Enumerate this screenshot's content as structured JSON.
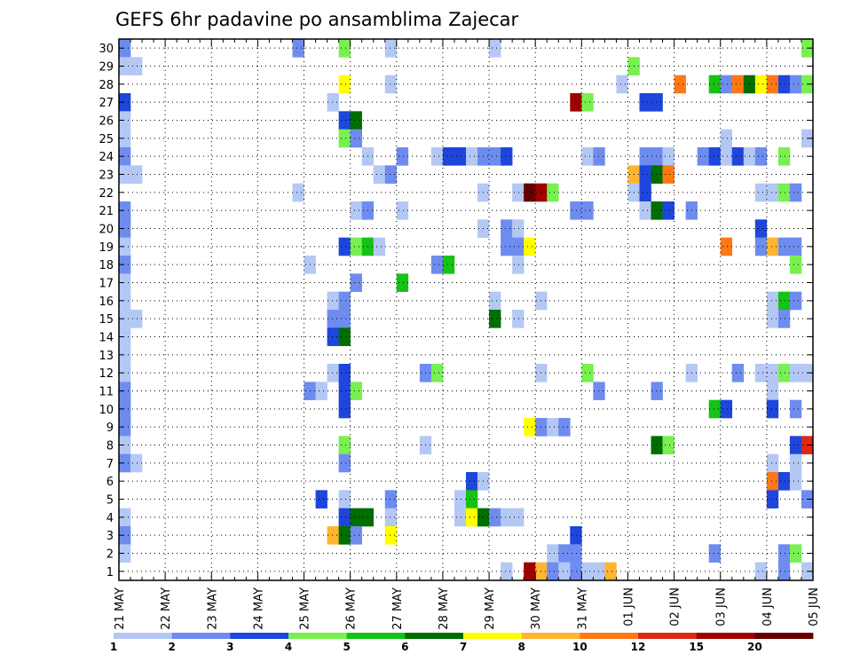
{
  "chart_data": {
    "type": "heatmap",
    "title": "GEFS 6hr padavine po ansamblima Zajecar",
    "x_tick_labels": [
      "21 MAY",
      "22 MAY",
      "23 MAY",
      "24 MAY",
      "25 MAY",
      "26 MAY",
      "27 MAY",
      "28 MAY",
      "29 MAY",
      "30 MAY",
      "31 MAY",
      "01 JUN",
      "02 JUN",
      "03 JUN",
      "04 JUN",
      "05 JUN"
    ],
    "y_tick_labels": [
      "1",
      "2",
      "3",
      "4",
      "5",
      "6",
      "7",
      "8",
      "9",
      "10",
      "11",
      "12",
      "13",
      "14",
      "15",
      "16",
      "17",
      "18",
      "19",
      "20",
      "21",
      "22",
      "23",
      "24",
      "25",
      "26",
      "27",
      "28",
      "29",
      "30"
    ],
    "x_step_hours": 6,
    "n_steps": 60,
    "grid": true,
    "legend": {
      "position": "bottom",
      "levels": [
        "1",
        "2",
        "3",
        "4",
        "5",
        "6",
        "7",
        "8",
        "10",
        "12",
        "15",
        "20"
      ],
      "colors": [
        "#b4c8f5",
        "#6e8cf0",
        "#1e46dc",
        "#78f050",
        "#14c314",
        "#006e00",
        "#ffff00",
        "#ffb432",
        "#ff7814",
        "#dc2814",
        "#a00000",
        "#640000"
      ]
    },
    "series": [
      {
        "y": 30,
        "cells": [
          [
            0,
            2
          ],
          [
            15,
            2
          ],
          [
            19,
            4
          ],
          [
            23,
            1
          ],
          [
            32,
            1
          ],
          [
            59,
            4
          ]
        ]
      },
      {
        "y": 29,
        "cells": [
          [
            0,
            1
          ],
          [
            1,
            1
          ],
          [
            44,
            4
          ]
        ]
      },
      {
        "y": 28,
        "cells": [
          [
            19,
            7
          ],
          [
            23,
            1
          ],
          [
            43,
            1
          ],
          [
            48,
            9
          ],
          [
            51,
            5
          ],
          [
            52,
            2
          ],
          [
            53,
            9
          ],
          [
            54,
            6
          ],
          [
            55,
            7
          ],
          [
            56,
            9
          ],
          [
            57,
            3
          ],
          [
            58,
            2
          ],
          [
            59,
            4
          ]
        ]
      },
      {
        "y": 27,
        "cells": [
          [
            0,
            3
          ],
          [
            18,
            1
          ],
          [
            39,
            11
          ],
          [
            40,
            4
          ],
          [
            45,
            3
          ],
          [
            46,
            3
          ]
        ]
      },
      {
        "y": 26,
        "cells": [
          [
            0,
            1
          ],
          [
            19,
            3
          ],
          [
            20,
            6
          ]
        ]
      },
      {
        "y": 25,
        "cells": [
          [
            0,
            1
          ],
          [
            19,
            4
          ],
          [
            20,
            2
          ],
          [
            52,
            1
          ],
          [
            59,
            1
          ]
        ]
      },
      {
        "y": 24,
        "cells": [
          [
            0,
            2
          ],
          [
            21,
            1
          ],
          [
            24,
            2
          ],
          [
            27,
            1
          ],
          [
            28,
            3
          ],
          [
            29,
            3
          ],
          [
            30,
            1
          ],
          [
            31,
            2
          ],
          [
            32,
            2
          ],
          [
            33,
            3
          ],
          [
            40,
            1
          ],
          [
            41,
            2
          ],
          [
            45,
            2
          ],
          [
            46,
            2
          ],
          [
            47,
            1
          ],
          [
            50,
            2
          ],
          [
            51,
            3
          ],
          [
            52,
            1
          ],
          [
            53,
            3
          ],
          [
            54,
            1
          ],
          [
            55,
            2
          ],
          [
            57,
            4
          ]
        ]
      },
      {
        "y": 23,
        "cells": [
          [
            0,
            1
          ],
          [
            1,
            1
          ],
          [
            22,
            1
          ],
          [
            23,
            2
          ],
          [
            44,
            8
          ],
          [
            45,
            3
          ],
          [
            46,
            6
          ],
          [
            47,
            9
          ]
        ]
      },
      {
        "y": 22,
        "cells": [
          [
            15,
            1
          ],
          [
            31,
            1
          ],
          [
            34,
            1
          ],
          [
            35,
            12
          ],
          [
            36,
            11
          ],
          [
            37,
            4
          ],
          [
            44,
            1
          ],
          [
            45,
            3
          ],
          [
            55,
            1
          ],
          [
            56,
            1
          ],
          [
            57,
            4
          ],
          [
            58,
            2
          ]
        ]
      },
      {
        "y": 21,
        "cells": [
          [
            0,
            2
          ],
          [
            20,
            1
          ],
          [
            21,
            2
          ],
          [
            24,
            1
          ],
          [
            39,
            2
          ],
          [
            40,
            2
          ],
          [
            45,
            1
          ],
          [
            46,
            6
          ],
          [
            47,
            3
          ],
          [
            49,
            2
          ]
        ]
      },
      {
        "y": 20,
        "cells": [
          [
            0,
            2
          ],
          [
            31,
            1
          ],
          [
            33,
            2
          ],
          [
            34,
            1
          ],
          [
            55,
            3
          ]
        ]
      },
      {
        "y": 19,
        "cells": [
          [
            0,
            1
          ],
          [
            19,
            3
          ],
          [
            20,
            4
          ],
          [
            21,
            5
          ],
          [
            22,
            1
          ],
          [
            33,
            2
          ],
          [
            34,
            2
          ],
          [
            35,
            7
          ],
          [
            52,
            9
          ],
          [
            55,
            2
          ],
          [
            56,
            8
          ],
          [
            57,
            2
          ],
          [
            58,
            2
          ]
        ]
      },
      {
        "y": 18,
        "cells": [
          [
            0,
            2
          ],
          [
            16,
            1
          ],
          [
            27,
            2
          ],
          [
            28,
            5
          ],
          [
            34,
            1
          ],
          [
            58,
            4
          ]
        ]
      },
      {
        "y": 17,
        "cells": [
          [
            0,
            1
          ],
          [
            20,
            2
          ],
          [
            24,
            5
          ]
        ]
      },
      {
        "y": 16,
        "cells": [
          [
            0,
            1
          ],
          [
            18,
            1
          ],
          [
            19,
            2
          ],
          [
            32,
            1
          ],
          [
            36,
            1
          ],
          [
            56,
            1
          ],
          [
            57,
            5
          ],
          [
            58,
            2
          ]
        ]
      },
      {
        "y": 15,
        "cells": [
          [
            0,
            1
          ],
          [
            1,
            1
          ],
          [
            18,
            2
          ],
          [
            19,
            2
          ],
          [
            32,
            6
          ],
          [
            34,
            1
          ],
          [
            56,
            1
          ],
          [
            57,
            2
          ]
        ]
      },
      {
        "y": 14,
        "cells": [
          [
            0,
            1
          ],
          [
            18,
            3
          ],
          [
            19,
            6
          ]
        ]
      },
      {
        "y": 13,
        "cells": [
          [
            0,
            1
          ]
        ]
      },
      {
        "y": 12,
        "cells": [
          [
            0,
            1
          ],
          [
            18,
            1
          ],
          [
            19,
            3
          ],
          [
            26,
            2
          ],
          [
            27,
            4
          ],
          [
            36,
            1
          ],
          [
            40,
            4
          ],
          [
            49,
            1
          ],
          [
            53,
            2
          ],
          [
            55,
            1
          ],
          [
            56,
            1
          ],
          [
            57,
            4
          ],
          [
            58,
            1
          ],
          [
            59,
            1
          ]
        ]
      },
      {
        "y": 11,
        "cells": [
          [
            0,
            2
          ],
          [
            16,
            2
          ],
          [
            17,
            1
          ],
          [
            19,
            3
          ],
          [
            20,
            4
          ],
          [
            41,
            2
          ],
          [
            46,
            2
          ],
          [
            56,
            1
          ]
        ]
      },
      {
        "y": 10,
        "cells": [
          [
            0,
            2
          ],
          [
            19,
            3
          ],
          [
            51,
            5
          ],
          [
            52,
            3
          ],
          [
            56,
            3
          ],
          [
            58,
            2
          ]
        ]
      },
      {
        "y": 9,
        "cells": [
          [
            0,
            2
          ],
          [
            35,
            7
          ],
          [
            36,
            2
          ],
          [
            37,
            1
          ],
          [
            38,
            2
          ]
        ]
      },
      {
        "y": 8,
        "cells": [
          [
            0,
            1
          ],
          [
            19,
            4
          ],
          [
            26,
            1
          ],
          [
            46,
            6
          ],
          [
            47,
            4
          ],
          [
            58,
            3
          ],
          [
            59,
            10
          ]
        ]
      },
      {
        "y": 7,
        "cells": [
          [
            0,
            2
          ],
          [
            1,
            1
          ],
          [
            19,
            2
          ],
          [
            56,
            1
          ],
          [
            58,
            1
          ]
        ]
      },
      {
        "y": 6,
        "cells": [
          [
            30,
            3
          ],
          [
            31,
            1
          ],
          [
            56,
            9
          ],
          [
            57,
            3
          ],
          [
            58,
            1
          ]
        ]
      },
      {
        "y": 5,
        "cells": [
          [
            17,
            3
          ],
          [
            19,
            1
          ],
          [
            23,
            2
          ],
          [
            29,
            1
          ],
          [
            30,
            5
          ],
          [
            56,
            3
          ],
          [
            59,
            2
          ]
        ]
      },
      {
        "y": 4,
        "cells": [
          [
            0,
            1
          ],
          [
            19,
            3
          ],
          [
            20,
            6
          ],
          [
            21,
            6
          ],
          [
            23,
            1
          ],
          [
            29,
            1
          ],
          [
            30,
            7
          ],
          [
            31,
            6
          ],
          [
            32,
            2
          ],
          [
            33,
            1
          ],
          [
            34,
            1
          ]
        ]
      },
      {
        "y": 3,
        "cells": [
          [
            0,
            2
          ],
          [
            18,
            8
          ],
          [
            19,
            6
          ],
          [
            20,
            2
          ],
          [
            23,
            7
          ],
          [
            39,
            3
          ]
        ]
      },
      {
        "y": 2,
        "cells": [
          [
            0,
            1
          ],
          [
            37,
            1
          ],
          [
            38,
            2
          ],
          [
            39,
            2
          ],
          [
            51,
            2
          ],
          [
            57,
            2
          ],
          [
            58,
            4
          ]
        ]
      },
      {
        "y": 1,
        "cells": [
          [
            33,
            1
          ],
          [
            35,
            11
          ],
          [
            36,
            8
          ],
          [
            37,
            2
          ],
          [
            38,
            1
          ],
          [
            39,
            2
          ],
          [
            40,
            1
          ],
          [
            41,
            1
          ],
          [
            42,
            8
          ],
          [
            55,
            1
          ],
          [
            57,
            2
          ],
          [
            59,
            1
          ]
        ]
      }
    ]
  }
}
